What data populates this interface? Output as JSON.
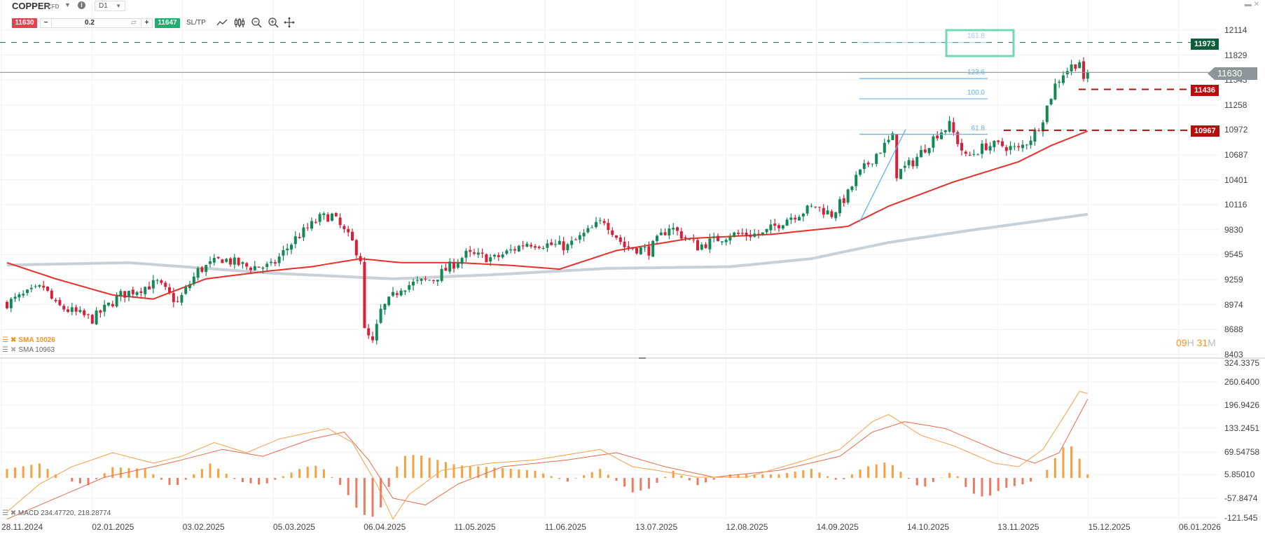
{
  "header": {
    "symbol": "COPPER",
    "type": "CFD",
    "timeframe": "D1",
    "sell_price": "11630",
    "buy_price": "11647",
    "volume": "0.2",
    "minus": "−",
    "plus": "+",
    "swap": "⇄",
    "sltp": "SL/TP",
    "info": "i",
    "window_min": "▬",
    "window_close": "✕"
  },
  "price_axis": [
    "12114",
    "11829",
    "11543",
    "11258",
    "10972",
    "10687",
    "10401",
    "10116",
    "9830",
    "9545",
    "9259",
    "8974",
    "8688",
    "8403"
  ],
  "macd_axis": [
    "324.3375",
    "260.6400",
    "196.9426",
    "133.2451",
    "69.54758",
    "5.85010",
    "-57.8474",
    "-121.545"
  ],
  "dates": [
    "28.11.2024",
    "02.01.2025",
    "03.02.2025",
    "05.03.2025",
    "06.04.2025",
    "11.05.2025",
    "11.06.2025",
    "13.07.2025",
    "12.08.2025",
    "14.09.2025",
    "14.10.2025",
    "13.11.2025",
    "15.12.2025",
    "06.01.2026"
  ],
  "flags": {
    "target": "11973",
    "current": "11630",
    "support1": "11436",
    "support2": "10967"
  },
  "fib": {
    "l1618": "161.8",
    "l1236": "123.6",
    "l100": "100.0",
    "l618": "61.8"
  },
  "legend": {
    "sma1": "SMA 10026",
    "sma2": "SMA 10963",
    "macd": "MACD 234.47720, 218.28774"
  },
  "timer": {
    "h": "09",
    "hu": "H",
    "m": "31",
    "mu": "M"
  },
  "colors": {
    "up": "#138a55",
    "down": "#d5213a",
    "sma50": "#e8302a",
    "sma200": "#c9d0d6",
    "macd": "#f7a04a",
    "signal": "#ea6a4a",
    "hist_up": "#f7a040",
    "hist_down": "#ec7a60",
    "fib": "#5fb0f5",
    "target": "#0c5e3c",
    "support": "#b80d0d"
  },
  "chart_data": {
    "type": "candlestick",
    "symbol": "COPPER",
    "timeframe": "D1",
    "ylim": [
      8403,
      12114
    ],
    "close_anchors": [
      [
        0,
        8989
      ],
      [
        9,
        9174
      ],
      [
        12,
        8961
      ],
      [
        21,
        8804
      ],
      [
        28,
        9081
      ],
      [
        37,
        9220
      ],
      [
        42,
        8989
      ],
      [
        47,
        9359
      ],
      [
        53,
        9497
      ],
      [
        59,
        9405
      ],
      [
        65,
        9405
      ],
      [
        71,
        9728
      ],
      [
        77,
        9960
      ],
      [
        80,
        9990
      ],
      [
        85,
        9682
      ],
      [
        87,
        9497
      ],
      [
        88,
        8665
      ],
      [
        90,
        8526
      ],
      [
        92,
        8896
      ],
      [
        97,
        9174
      ],
      [
        105,
        9266
      ],
      [
        113,
        9543
      ],
      [
        120,
        9497
      ],
      [
        128,
        9682
      ],
      [
        138,
        9636
      ],
      [
        147,
        9941
      ],
      [
        152,
        9636
      ],
      [
        158,
        9590
      ],
      [
        163,
        9867
      ],
      [
        170,
        9636
      ],
      [
        178,
        9775
      ],
      [
        186,
        9775
      ],
      [
        192,
        9960
      ],
      [
        199,
        10098
      ],
      [
        203,
        10005
      ],
      [
        207,
        10237
      ],
      [
        209,
        10422
      ],
      [
        214,
        10699
      ],
      [
        218,
        10884
      ],
      [
        219,
        10468
      ],
      [
        223,
        10607
      ],
      [
        229,
        10930
      ],
      [
        232,
        11023
      ],
      [
        236,
        10653
      ],
      [
        241,
        10792
      ],
      [
        245,
        10792
      ],
      [
        249,
        10745
      ],
      [
        253,
        10930
      ],
      [
        255,
        11115
      ],
      [
        258,
        11485
      ],
      [
        260,
        11624
      ],
      [
        262,
        11700
      ],
      [
        264,
        11763
      ],
      [
        265,
        11500
      ],
      [
        266,
        11630
      ]
    ],
    "sma50": [
      [
        0,
        9451
      ],
      [
        12,
        9266
      ],
      [
        26,
        9081
      ],
      [
        36,
        9035
      ],
      [
        49,
        9266
      ],
      [
        65,
        9359
      ],
      [
        75,
        9405
      ],
      [
        87,
        9497
      ],
      [
        97,
        9451
      ],
      [
        111,
        9451
      ],
      [
        124,
        9420
      ],
      [
        136,
        9377
      ],
      [
        150,
        9590
      ],
      [
        168,
        9728
      ],
      [
        188,
        9775
      ],
      [
        207,
        9867
      ],
      [
        217,
        10098
      ],
      [
        233,
        10376
      ],
      [
        249,
        10607
      ],
      [
        257,
        10792
      ],
      [
        266,
        10958
      ]
    ],
    "sma200": [
      [
        0,
        9424
      ],
      [
        30,
        9451
      ],
      [
        65,
        9331
      ],
      [
        95,
        9266
      ],
      [
        119,
        9312
      ],
      [
        148,
        9386
      ],
      [
        178,
        9405
      ],
      [
        198,
        9497
      ],
      [
        217,
        9682
      ],
      [
        237,
        9821
      ],
      [
        266,
        10005
      ]
    ],
    "macd": [
      [
        0,
        -94
      ],
      [
        8,
        -17
      ],
      [
        16,
        31
      ],
      [
        26,
        70
      ],
      [
        36,
        41
      ],
      [
        43,
        60
      ],
      [
        51,
        98
      ],
      [
        59,
        70
      ],
      [
        67,
        108
      ],
      [
        79,
        137
      ],
      [
        85,
        98
      ],
      [
        91,
        -17
      ],
      [
        95,
        -114
      ],
      [
        99,
        -46
      ],
      [
        107,
        21
      ],
      [
        119,
        41
      ],
      [
        130,
        50
      ],
      [
        146,
        79
      ],
      [
        154,
        31
      ],
      [
        160,
        21
      ],
      [
        170,
        2
      ],
      [
        182,
        2
      ],
      [
        194,
        41
      ],
      [
        205,
        79
      ],
      [
        213,
        156
      ],
      [
        217,
        176
      ],
      [
        225,
        118
      ],
      [
        233,
        89
      ],
      [
        237,
        70
      ],
      [
        243,
        41
      ],
      [
        249,
        31
      ],
      [
        255,
        79
      ],
      [
        261,
        185
      ],
      [
        264,
        240
      ],
      [
        266,
        234
      ]
    ],
    "signal": [
      [
        0,
        -114
      ],
      [
        12,
        -56
      ],
      [
        24,
        2
      ],
      [
        36,
        31
      ],
      [
        43,
        50
      ],
      [
        53,
        79
      ],
      [
        63,
        60
      ],
      [
        75,
        108
      ],
      [
        83,
        127
      ],
      [
        89,
        50
      ],
      [
        95,
        -56
      ],
      [
        103,
        -75
      ],
      [
        111,
        -17
      ],
      [
        122,
        31
      ],
      [
        138,
        50
      ],
      [
        150,
        70
      ],
      [
        162,
        31
      ],
      [
        174,
        2
      ],
      [
        190,
        21
      ],
      [
        205,
        60
      ],
      [
        213,
        127
      ],
      [
        221,
        156
      ],
      [
        231,
        137
      ],
      [
        245,
        70
      ],
      [
        253,
        41
      ],
      [
        259,
        70
      ],
      [
        266,
        218
      ]
    ],
    "histogram": [
      [
        0,
        25
      ],
      [
        8,
        40
      ],
      [
        12,
        10
      ],
      [
        16,
        -10
      ],
      [
        20,
        -20
      ],
      [
        26,
        30
      ],
      [
        34,
        25
      ],
      [
        41,
        -27
      ],
      [
        50,
        40
      ],
      [
        57,
        -10
      ],
      [
        63,
        -20
      ],
      [
        73,
        30
      ],
      [
        77,
        35
      ],
      [
        83,
        -30
      ],
      [
        87,
        -100
      ],
      [
        91,
        -110
      ],
      [
        97,
        60
      ],
      [
        101,
        65
      ],
      [
        111,
        35
      ],
      [
        119,
        30
      ],
      [
        130,
        20
      ],
      [
        138,
        -10
      ],
      [
        146,
        25
      ],
      [
        154,
        -40
      ],
      [
        158,
        -30
      ],
      [
        164,
        20
      ],
      [
        170,
        -20
      ],
      [
        178,
        10
      ],
      [
        190,
        10
      ],
      [
        198,
        25
      ],
      [
        205,
        -10
      ],
      [
        211,
        30
      ],
      [
        217,
        45
      ],
      [
        225,
        -30
      ],
      [
        233,
        20
      ],
      [
        237,
        -40
      ],
      [
        241,
        -55
      ],
      [
        245,
        -30
      ],
      [
        251,
        -15
      ],
      [
        255,
        5
      ],
      [
        257,
        40
      ],
      [
        261,
        100
      ],
      [
        263,
        75
      ],
      [
        266,
        10
      ]
    ],
    "levels": {
      "target": 11973,
      "current": 11630,
      "support1": 11436,
      "support2": 10967,
      "fib_1618": 11973,
      "fib_1236": 11559,
      "fib_100": 11328,
      "fib_618": 10921,
      "trend_from": 9914,
      "trend_to": 10977
    }
  }
}
